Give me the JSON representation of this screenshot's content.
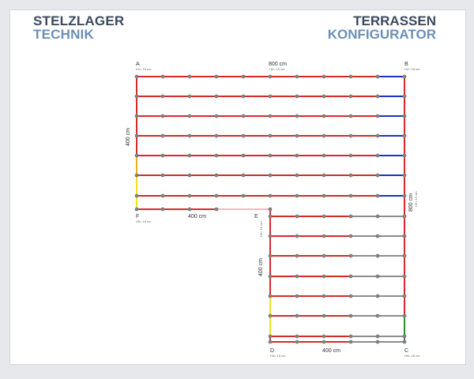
{
  "brand": {
    "line1": "STELZLAGER",
    "line2": "TECHNIK"
  },
  "product": {
    "line1": "TERRASSEN",
    "line2": "KONFIGURATOR"
  },
  "colors": {
    "background": "#e6e8eb",
    "canvas": "#ffffff",
    "brand_dark": "#3d4a5c",
    "brand_light": "#6b8fb5",
    "beam_red": "#d42a2a",
    "beam_blue": "#1c32c8",
    "beam_gray": "#8c8c8c",
    "beam_yellow": "#f0e020",
    "beam_orange": "#e8b020",
    "beam_green": "#2e8b2e",
    "beam_pink": "#f4b8c0",
    "support": "#808080"
  },
  "corners": {
    "A": {
      "name": "A",
      "height": "H1= 15 cm"
    },
    "B": {
      "name": "B",
      "height": "H2= 15 cm"
    },
    "C": {
      "name": "C",
      "height": "H3= 15 cm"
    },
    "D": {
      "name": "D",
      "height": "H4= 15 cm"
    },
    "E": {
      "name": "E",
      "height": ""
    },
    "F": {
      "name": "F",
      "height": "H5= 15 cm"
    }
  },
  "dimensions": {
    "top": {
      "value": "800 cm",
      "sub": "H2= 15 cm"
    },
    "left": {
      "value": "400 cm"
    },
    "right": {
      "value": "800 cm",
      "sub": "H2= 15 cm"
    },
    "inner_bottom": {
      "value": "400 cm"
    },
    "inner_left": {
      "value": "400 cm"
    },
    "bottom": {
      "value": "400 cm"
    },
    "inner_e_sub": {
      "value": "H5= 15 cm"
    }
  }
}
